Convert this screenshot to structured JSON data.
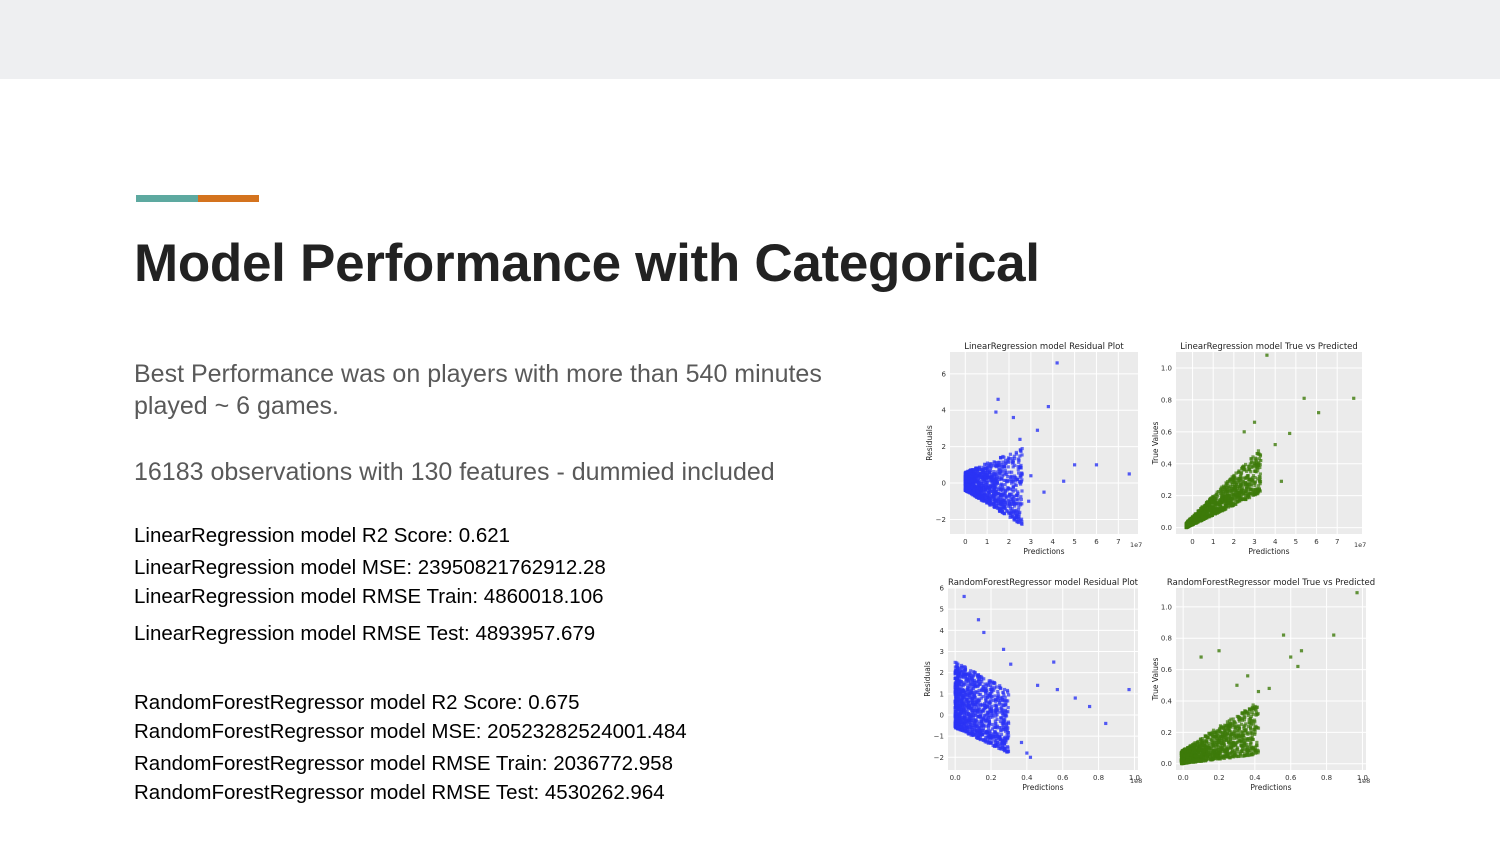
{
  "slide": {
    "title": "Model Performance with Categorical",
    "paragraphs": [
      "Best Performance was on players with more than 540 minutes played ~ 6 games.",
      "16183 observations with 130 features - dummied included"
    ],
    "metrics": [
      "LinearRegression model R2 Score: 0.621",
      "LinearRegression model MSE: 23950821762912.28",
      "LinearRegression model RMSE Train: 4860018.106",
      "LinearRegression model RMSE Test: 4893957.679",
      "RandomForestRegressor model R2 Score: 0.675",
      "RandomForestRegressor model MSE: 20523282524001.484",
      "RandomForestRegressor model RMSE Train: 2036772.958",
      "RandomForestRegressor model RMSE Test: 4530262.964"
    ],
    "colors": {
      "topbar": "#eeeff1",
      "accent_teal": "#5da9a0",
      "accent_orange": "#d4731e",
      "residual_points": "#2b33f5",
      "true_points": "#3d7a0a",
      "plot_bg": "#ebebeb"
    }
  },
  "chart_data": [
    {
      "type": "scatter",
      "title": "LinearRegression model Residual Plot",
      "xlabel": "Predictions",
      "ylabel": "Residuals",
      "x_multiplier": "1e7",
      "xlim": [
        -0.7,
        7.9
      ],
      "ylim": [
        -2.8,
        7.2
      ],
      "xticks": [
        0,
        1,
        2,
        3,
        4,
        5,
        6,
        7
      ],
      "xtick_labels": [
        "0",
        "1",
        "2",
        "3",
        "4",
        "5",
        "6",
        "7"
      ],
      "yticks": [
        -2,
        0,
        2,
        4,
        6
      ],
      "ytick_labels": [
        "−2",
        "0",
        "2",
        "4",
        "6"
      ],
      "grid": true,
      "color": "#2b33f5",
      "cloud": {
        "x_from": 0,
        "x_to": 2.6,
        "y_top_from": 0.6,
        "y_top_to": 1.9,
        "y_bottom_from": -0.4,
        "y_bottom_to": -2.3
      },
      "outliers": {
        "x": [
          4.2,
          3.8,
          5.0,
          6.0,
          7.5,
          1.5,
          2.2,
          3.3,
          4.5,
          1.4,
          2.5,
          3.0,
          2.9,
          3.6
        ],
        "y": [
          6.6,
          4.2,
          1.0,
          1.0,
          0.5,
          4.6,
          3.6,
          2.9,
          0.1,
          3.9,
          2.4,
          0.4,
          -1.0,
          -0.5
        ]
      }
    },
    {
      "type": "scatter",
      "title": "LinearRegression model True vs Predicted",
      "xlabel": "Predictions",
      "ylabel": "True Values",
      "x_multiplier": "1e7",
      "xlim": [
        -0.8,
        8.2
      ],
      "ylim": [
        -0.04,
        1.1
      ],
      "xticks": [
        0,
        1,
        2,
        3,
        4,
        5,
        6,
        7
      ],
      "xtick_labels": [
        "0",
        "1",
        "2",
        "3",
        "4",
        "5",
        "6",
        "7"
      ],
      "yticks": [
        0.0,
        0.2,
        0.4,
        0.6,
        0.8,
        1.0
      ],
      "ytick_labels": [
        "0.0",
        "0.2",
        "0.4",
        "0.6",
        "0.8",
        "1.0"
      ],
      "grid": true,
      "color": "#3d7a0a",
      "cloud": {
        "x_from": -0.3,
        "x_to": 3.3,
        "y_top_from": 0.03,
        "y_top_to": 0.5,
        "y_bottom_from": 0.0,
        "y_bottom_to": 0.22
      },
      "outliers": {
        "x": [
          3.6,
          5.4,
          6.1,
          7.8,
          4.7,
          3.0,
          4.0,
          2.5,
          3.3,
          4.3
        ],
        "y": [
          1.08,
          0.81,
          0.72,
          0.81,
          0.59,
          0.66,
          0.52,
          0.6,
          0.42,
          0.29
        ]
      }
    },
    {
      "type": "scatter",
      "title": "RandomForestRegressor model Residual Plot",
      "xlabel": "Predictions",
      "ylabel": "Residuals",
      "x_multiplier": "1e8",
      "xlim": [
        -0.04,
        1.02
      ],
      "ylim": [
        -2.6,
        6.0
      ],
      "xticks": [
        0.0,
        0.2,
        0.4,
        0.6,
        0.8,
        1.0
      ],
      "xtick_labels": [
        "0.0",
        "0.2",
        "0.4",
        "0.6",
        "0.8",
        "1.0"
      ],
      "yticks": [
        -2,
        -1,
        0,
        1,
        2,
        3,
        4,
        5,
        6
      ],
      "ytick_labels": [
        "−2",
        "−1",
        "0",
        "1",
        "2",
        "3",
        "4",
        "5",
        "6"
      ],
      "grid": true,
      "color": "#2b33f5",
      "cloud": {
        "x_from": 0.0,
        "x_to": 0.3,
        "y_top_from": 2.5,
        "y_top_to": 1.2,
        "y_bottom_from": -0.6,
        "y_bottom_to": -1.8
      },
      "outliers": {
        "x": [
          0.05,
          0.13,
          0.16,
          0.27,
          0.31,
          0.46,
          0.55,
          0.57,
          0.67,
          0.75,
          0.84,
          0.97,
          0.37,
          0.42,
          0.4
        ],
        "y": [
          5.6,
          4.5,
          3.9,
          3.1,
          2.4,
          1.4,
          2.5,
          1.2,
          0.8,
          0.4,
          -0.4,
          1.2,
          -1.3,
          -2.0,
          -1.8
        ]
      }
    },
    {
      "type": "scatter",
      "title": "RandomForestRegressor model True vs Predicted",
      "xlabel": "Predictions",
      "ylabel": "True Values",
      "x_multiplier": "1e8",
      "xlim": [
        -0.04,
        1.02
      ],
      "ylim": [
        -0.04,
        1.12
      ],
      "xticks": [
        0.0,
        0.2,
        0.4,
        0.6,
        0.8,
        1.0
      ],
      "xtick_labels": [
        "0.0",
        "0.2",
        "0.4",
        "0.6",
        "0.8",
        "1.0"
      ],
      "yticks": [
        0.0,
        0.2,
        0.4,
        0.6,
        0.8,
        1.0
      ],
      "ytick_labels": [
        "0.0",
        "0.2",
        "0.4",
        "0.6",
        "0.8",
        "1.0"
      ],
      "grid": true,
      "color": "#3d7a0a",
      "cloud": {
        "x_from": -0.01,
        "x_to": 0.42,
        "y_top_from": 0.08,
        "y_top_to": 0.4,
        "y_bottom_from": 0.0,
        "y_bottom_to": 0.06
      },
      "outliers": {
        "x": [
          0.97,
          0.84,
          0.56,
          0.64,
          0.66,
          0.6,
          0.1,
          0.2,
          0.42,
          0.3,
          0.48,
          0.36
        ],
        "y": [
          1.09,
          0.82,
          0.82,
          0.62,
          0.72,
          0.68,
          0.68,
          0.72,
          0.46,
          0.5,
          0.48,
          0.56
        ]
      }
    }
  ]
}
